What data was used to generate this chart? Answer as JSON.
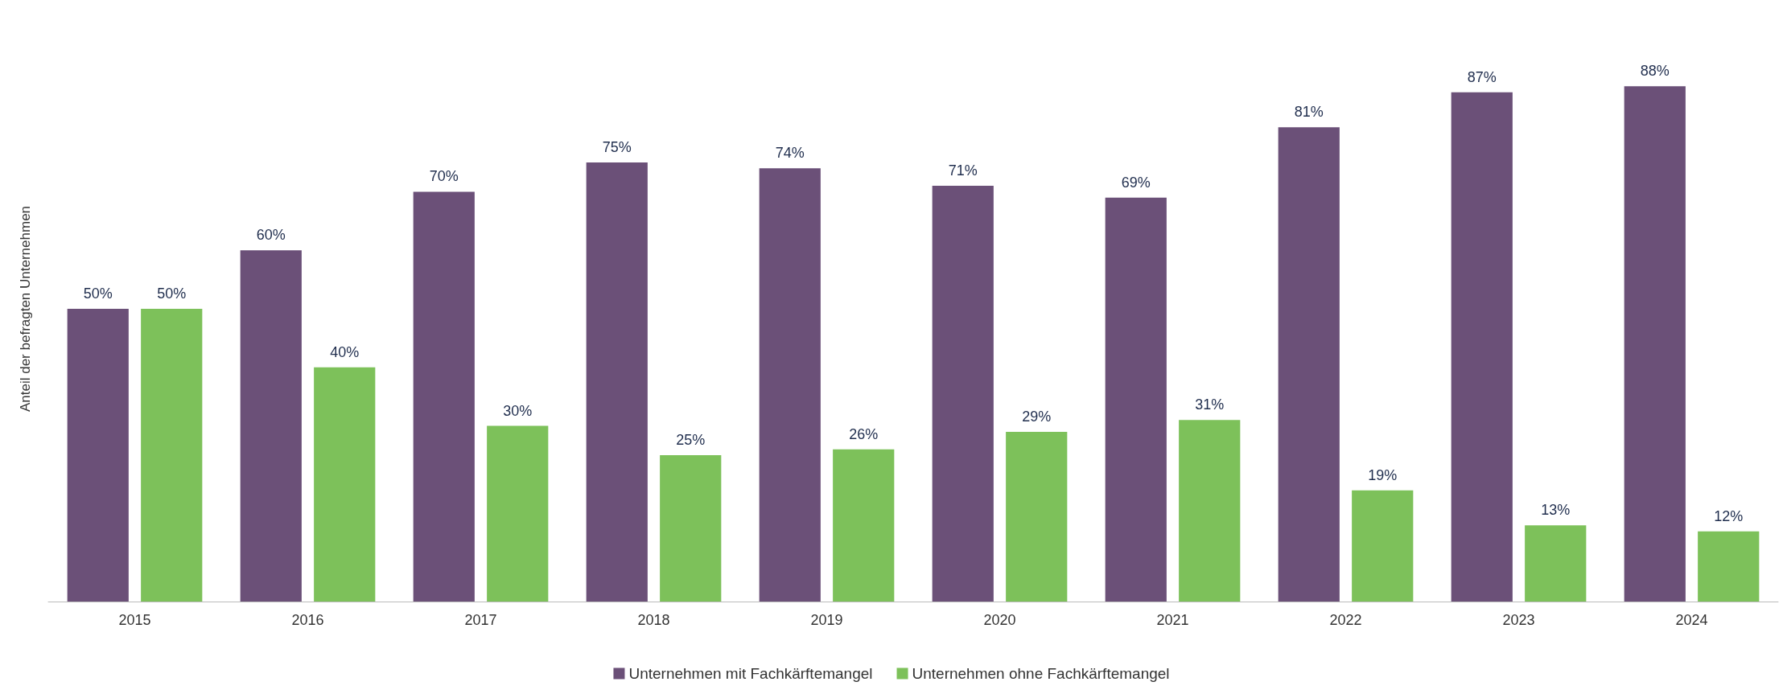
{
  "chart_data": {
    "type": "bar",
    "ylabel": "Anteil der befragten Unternehmen",
    "categories": [
      "2015",
      "2016",
      "2017",
      "2018",
      "2019",
      "2020",
      "2021",
      "2022",
      "2023",
      "2024"
    ],
    "series": [
      {
        "name": "Unternehmen mit Fachkärftemangel",
        "color": "#6b5078",
        "values": [
          50,
          60,
          70,
          75,
          74,
          71,
          69,
          81,
          87,
          88
        ],
        "value_labels": [
          "50%",
          "60%",
          "70%",
          "75%",
          "74%",
          "71%",
          "69%",
          "81%",
          "87%",
          "88%"
        ]
      },
      {
        "name": "Unternehmen ohne Fachkärftemangel",
        "color": "#7dc15a",
        "values": [
          50,
          40,
          30,
          25,
          26,
          29,
          31,
          19,
          13,
          12
        ],
        "value_labels": [
          "50%",
          "40%",
          "30%",
          "25%",
          "26%",
          "29%",
          "31%",
          "19%",
          "13%",
          "12%"
        ]
      }
    ],
    "legend": "bottom",
    "grid": false,
    "tick_labels": "x"
  }
}
